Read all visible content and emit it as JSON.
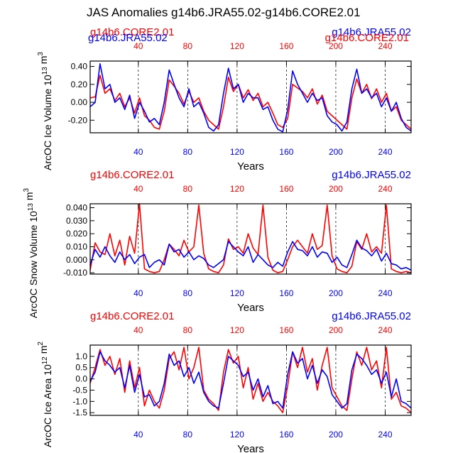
{
  "title": "JAS Anomalies g14b6.JRA55.02-g14b6.CORE2.01",
  "colors": {
    "core": "#ff0000",
    "jra": "#0000ff",
    "axis": "#000000"
  },
  "chart_data": [
    {
      "type": "line",
      "ylabel": "ArcOC Ice Volume 10^13 m^3",
      "xlabel": "Years",
      "xlim": [
        1,
        261
      ],
      "ylim": [
        -0.34,
        0.46
      ],
      "yticks": [
        -0.2,
        0.0,
        0.2,
        0.4
      ],
      "ytick_labels": [
        "-0.20",
        "0.00",
        "0.20",
        "0.40"
      ],
      "xticks": [
        40,
        80,
        120,
        160,
        200,
        240
      ],
      "top_left_label": "g14b6.CORE2.01",
      "top_right_label": "g14b6.JRA55.02",
      "overlap_labels": {
        "left": "g14b6.JRA55.02",
        "right": "g14b6.CORE2.01"
      },
      "series": [
        {
          "name": "g14b6.CORE2.01",
          "color": "#ff0000",
          "x": [
            1,
            5,
            9,
            13,
            17,
            21,
            25,
            29,
            33,
            37,
            41,
            45,
            49,
            53,
            57,
            61,
            65,
            69,
            73,
            77,
            81,
            85,
            89,
            93,
            97,
            101,
            105,
            109,
            113,
            117,
            121,
            125,
            129,
            133,
            137,
            141,
            145,
            149,
            153,
            157,
            161,
            165,
            169,
            173,
            177,
            181,
            185,
            189,
            193,
            197,
            201,
            205,
            209,
            213,
            217,
            221,
            225,
            229,
            233,
            237,
            241,
            245,
            249,
            253,
            257,
            261
          ],
          "values": [
            0.05,
            0.06,
            0.3,
            0.1,
            0.15,
            0.02,
            0.1,
            -0.05,
            0.05,
            -0.12,
            0.05,
            -0.15,
            -0.2,
            -0.28,
            -0.3,
            -0.1,
            0.25,
            0.18,
            0.1,
            -0.02,
            0.12,
            0.0,
            0.05,
            -0.1,
            -0.2,
            -0.25,
            -0.3,
            -0.05,
            0.28,
            0.12,
            0.2,
            0.05,
            0.14,
            0.02,
            0.1,
            -0.05,
            0.0,
            -0.12,
            -0.25,
            -0.28,
            -0.18,
            0.2,
            0.16,
            0.12,
            0.05,
            0.15,
            -0.02,
            0.08,
            -0.1,
            -0.15,
            -0.2,
            -0.25,
            -0.3,
            0.05,
            0.26,
            0.1,
            0.2,
            0.04,
            0.15,
            0.0,
            0.1,
            -0.1,
            -0.05,
            -0.2,
            -0.25,
            -0.3
          ]
        },
        {
          "name": "g14b6.JRA55.02",
          "color": "#0000ff",
          "x": [
            1,
            5,
            9,
            13,
            17,
            21,
            25,
            29,
            33,
            37,
            41,
            45,
            49,
            53,
            57,
            61,
            65,
            69,
            73,
            77,
            81,
            85,
            89,
            93,
            97,
            101,
            105,
            109,
            113,
            117,
            121,
            125,
            129,
            133,
            137,
            141,
            145,
            149,
            153,
            157,
            161,
            165,
            169,
            173,
            177,
            181,
            185,
            189,
            193,
            197,
            201,
            205,
            209,
            213,
            217,
            221,
            225,
            229,
            233,
            237,
            241,
            245,
            249,
            253,
            257,
            261
          ],
          "values": [
            -0.05,
            0.0,
            0.43,
            0.15,
            0.2,
            0.0,
            0.05,
            -0.08,
            0.08,
            -0.18,
            0.0,
            -0.1,
            -0.22,
            -0.18,
            -0.25,
            0.0,
            0.36,
            0.2,
            0.05,
            -0.05,
            0.15,
            -0.05,
            0.0,
            -0.12,
            -0.28,
            -0.32,
            -0.25,
            0.1,
            0.38,
            0.15,
            0.2,
            0.0,
            0.1,
            0.05,
            0.05,
            -0.08,
            -0.05,
            -0.2,
            -0.3,
            -0.33,
            -0.08,
            0.35,
            0.2,
            0.1,
            0.0,
            0.1,
            0.02,
            0.05,
            -0.15,
            -0.22,
            -0.25,
            -0.32,
            -0.22,
            0.15,
            0.37,
            0.1,
            0.15,
            0.05,
            0.1,
            -0.05,
            0.05,
            -0.1,
            0.0,
            -0.18,
            -0.28,
            -0.32
          ]
        }
      ]
    },
    {
      "type": "line",
      "ylabel": "ArcOC Snow Volume 10^13 m^3",
      "xlabel": "Years",
      "xlim": [
        1,
        261
      ],
      "ylim": [
        -0.011,
        0.043
      ],
      "yticks": [
        -0.01,
        0.0,
        0.01,
        0.02,
        0.03,
        0.04
      ],
      "ytick_labels": [
        "-0.010",
        "0.000",
        "0.010",
        "0.020",
        "0.030",
        "0.040"
      ],
      "xticks": [
        40,
        80,
        120,
        160,
        200,
        240
      ],
      "top_left_label": "g14b6.CORE2.01",
      "top_right_label": "g14b6.JRA55.02",
      "series": [
        {
          "name": "g14b6.CORE2.01",
          "color": "#ff0000",
          "x": [
            1,
            5,
            9,
            13,
            17,
            21,
            25,
            29,
            33,
            37,
            41,
            45,
            49,
            53,
            57,
            61,
            65,
            69,
            73,
            77,
            81,
            85,
            89,
            93,
            97,
            101,
            105,
            109,
            113,
            117,
            121,
            125,
            129,
            133,
            137,
            141,
            145,
            149,
            153,
            157,
            161,
            165,
            169,
            173,
            177,
            181,
            185,
            189,
            193,
            197,
            201,
            205,
            209,
            213,
            217,
            221,
            225,
            229,
            233,
            237,
            241,
            245,
            249,
            253,
            257,
            261
          ],
          "values": [
            -0.008,
            0.013,
            0.006,
            0.004,
            0.02,
            0.003,
            0.015,
            -0.004,
            0.018,
            0.005,
            0.043,
            -0.007,
            -0.009,
            -0.01,
            -0.009,
            0.0,
            0.012,
            0.008,
            0.003,
            0.015,
            0.006,
            0.01,
            0.042,
            0.005,
            -0.007,
            -0.009,
            -0.01,
            -0.004,
            0.016,
            0.008,
            0.01,
            0.005,
            0.02,
            0.009,
            0.004,
            0.042,
            0.002,
            -0.008,
            -0.01,
            -0.009,
            0.0,
            0.01,
            0.015,
            0.01,
            0.005,
            0.02,
            0.008,
            0.011,
            0.042,
            0.003,
            -0.007,
            -0.009,
            -0.01,
            -0.005,
            0.014,
            0.008,
            0.02,
            0.006,
            0.01,
            0.005,
            0.042,
            -0.007,
            -0.009,
            -0.01,
            -0.009,
            -0.01
          ]
        },
        {
          "name": "g14b6.JRA55.02",
          "color": "#0000ff",
          "x": [
            1,
            5,
            9,
            13,
            17,
            21,
            25,
            29,
            33,
            37,
            41,
            45,
            49,
            53,
            57,
            61,
            65,
            69,
            73,
            77,
            81,
            85,
            89,
            93,
            97,
            101,
            105,
            109,
            113,
            117,
            121,
            125,
            129,
            133,
            137,
            141,
            145,
            149,
            153,
            157,
            161,
            165,
            169,
            173,
            177,
            181,
            185,
            189,
            193,
            197,
            201,
            205,
            209,
            213,
            217,
            221,
            225,
            229,
            233,
            237,
            241,
            245,
            249,
            253,
            257,
            261
          ],
          "values": [
            -0.004,
            0.008,
            0.002,
            0.01,
            0.003,
            -0.002,
            0.006,
            0.0,
            0.004,
            -0.003,
            0.002,
            0.004,
            -0.006,
            -0.002,
            0.0,
            -0.004,
            0.012,
            0.006,
            0.008,
            0.002,
            0.006,
            0.0,
            0.003,
            0.001,
            -0.004,
            -0.006,
            -0.003,
            0.0,
            0.014,
            0.01,
            0.006,
            0.003,
            0.01,
            -0.002,
            0.004,
            0.0,
            -0.004,
            -0.006,
            -0.002,
            -0.005,
            0.006,
            0.014,
            0.008,
            0.007,
            0.003,
            0.01,
            0.002,
            0.006,
            0.005,
            -0.002,
            0.002,
            -0.004,
            -0.006,
            0.004,
            0.015,
            0.009,
            0.007,
            0.003,
            0.008,
            -0.001,
            0.005,
            -0.003,
            -0.004,
            -0.007,
            -0.006,
            -0.008
          ]
        }
      ]
    },
    {
      "type": "line",
      "ylabel": "ArcOC Ice Area 10^12 m^2",
      "xlabel": "Years",
      "xlim": [
        1,
        261
      ],
      "ylim": [
        -1.62,
        1.5
      ],
      "yticks": [
        -1.5,
        -1.0,
        -0.5,
        0.0,
        0.5,
        1.0
      ],
      "ytick_labels": [
        "-1.5",
        "-1.0",
        "-0.5",
        "0.0",
        "0.5",
        "1.0"
      ],
      "xticks": [
        40,
        80,
        120,
        160,
        200,
        240
      ],
      "top_left_label": "g14b6.CORE2.01",
      "top_right_label": "g14b6.JRA55.02",
      "series": [
        {
          "name": "g14b6.CORE2.01",
          "color": "#ff0000",
          "x": [
            1,
            5,
            9,
            13,
            17,
            21,
            25,
            29,
            33,
            37,
            41,
            45,
            49,
            53,
            57,
            61,
            65,
            69,
            73,
            77,
            81,
            85,
            89,
            93,
            97,
            101,
            105,
            109,
            113,
            117,
            121,
            125,
            129,
            133,
            137,
            141,
            145,
            149,
            153,
            157,
            161,
            165,
            169,
            173,
            177,
            181,
            185,
            189,
            193,
            197,
            201,
            205,
            209,
            213,
            217,
            221,
            225,
            229,
            233,
            237,
            241,
            245,
            249,
            253,
            257,
            261
          ],
          "values": [
            -0.2,
            0.5,
            1.3,
            0.6,
            1.0,
            0.2,
            0.9,
            -0.6,
            0.8,
            -0.4,
            0.5,
            -1.2,
            -0.5,
            -1.0,
            -1.3,
            -0.5,
            0.9,
            1.2,
            0.4,
            1.4,
            0.0,
            0.5,
            1.4,
            -0.5,
            -0.9,
            -1.1,
            -1.4,
            0.3,
            1.3,
            0.7,
            1.0,
            -0.4,
            0.5,
            -0.9,
            -0.2,
            -1.0,
            -0.6,
            -1.0,
            -1.2,
            -1.5,
            -0.3,
            1.2,
            0.5,
            1.4,
            0.3,
            0.9,
            -0.5,
            0.6,
            1.4,
            -0.4,
            -0.8,
            -1.2,
            -1.4,
            0.0,
            1.2,
            0.6,
            1.4,
            0.4,
            0.8,
            -0.4,
            1.4,
            -0.9,
            -0.6,
            -1.2,
            -1.3,
            -1.5
          ]
        },
        {
          "name": "g14b6.JRA55.02",
          "color": "#0000ff",
          "x": [
            1,
            5,
            9,
            13,
            17,
            21,
            25,
            29,
            33,
            37,
            41,
            45,
            49,
            53,
            57,
            61,
            65,
            69,
            73,
            77,
            81,
            85,
            89,
            93,
            97,
            101,
            105,
            109,
            113,
            117,
            121,
            125,
            129,
            133,
            137,
            141,
            145,
            149,
            153,
            157,
            161,
            165,
            169,
            173,
            177,
            181,
            185,
            189,
            193,
            197,
            201,
            205,
            209,
            213,
            217,
            221,
            225,
            229,
            233,
            237,
            241,
            245,
            249,
            253,
            257,
            261
          ],
          "values": [
            -0.1,
            0.3,
            1.2,
            0.8,
            0.6,
            0.3,
            0.5,
            -0.4,
            0.6,
            -0.6,
            0.2,
            -0.8,
            -0.7,
            -1.2,
            -1.0,
            -0.2,
            1.1,
            0.6,
            0.8,
            0.1,
            0.5,
            -0.2,
            0.3,
            -0.6,
            -1.0,
            -1.2,
            -1.3,
            -0.2,
            1.0,
            0.8,
            0.6,
            0.1,
            0.3,
            -0.5,
            0.0,
            -0.8,
            -0.3,
            -1.1,
            -1.0,
            -1.3,
            0.2,
            1.2,
            0.7,
            0.9,
            0.0,
            0.6,
            -0.2,
            0.4,
            0.1,
            -0.7,
            -1.0,
            -1.3,
            -1.1,
            0.4,
            1.1,
            0.9,
            0.6,
            0.2,
            0.4,
            -0.2,
            0.3,
            -0.8,
            0.0,
            -1.0,
            -1.1,
            -1.3
          ]
        }
      ]
    }
  ]
}
